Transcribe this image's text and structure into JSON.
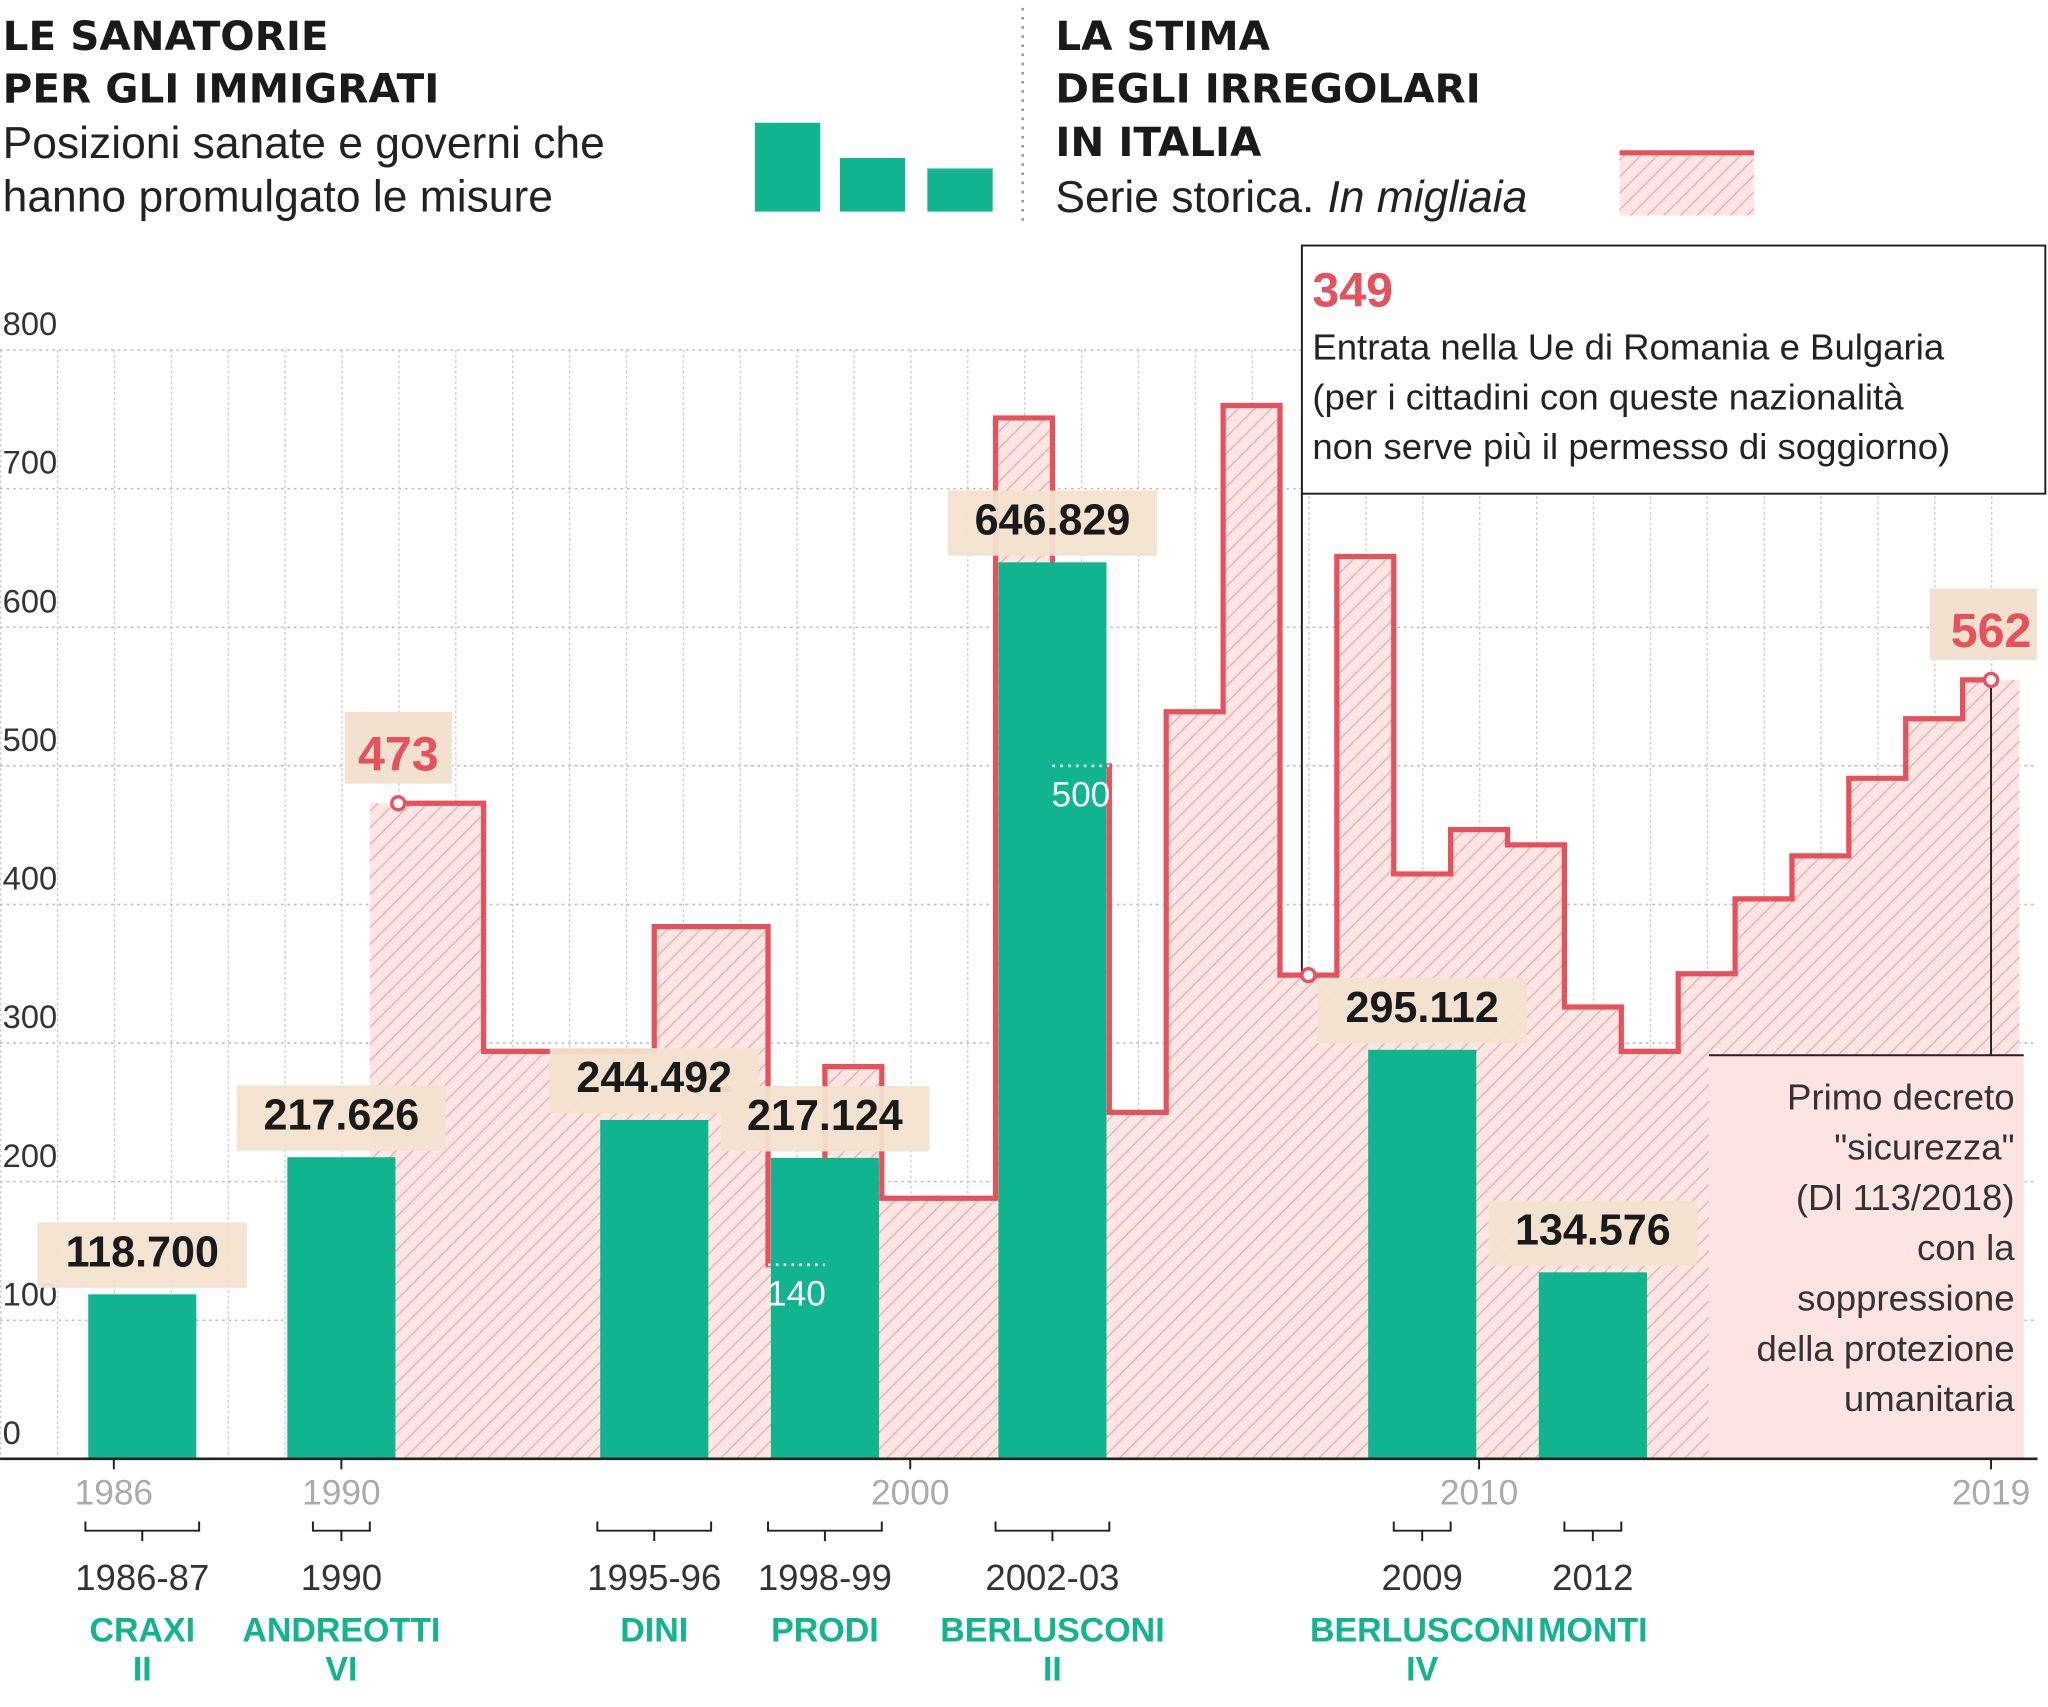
{
  "chart_data": {
    "type": "bar",
    "bars": {
      "title_lines": [
        "LE SANATORIE",
        "PER GLI IMMIGRATI"
      ],
      "subtitle_lines": [
        "Posizioni sanate e governi che",
        "hanno promulgato le misure"
      ],
      "color": "#10b48f",
      "categories": [
        "1986-87",
        "1990",
        "1995-96",
        "1998-99",
        "2002-03",
        "2009",
        "2012"
      ],
      "governments": [
        [
          "CRAXI",
          "II"
        ],
        [
          "ANDREOTTI",
          "VI"
        ],
        [
          "DINI"
        ],
        [
          "PRODI"
        ],
        [
          "BERLUSCONI",
          "II"
        ],
        [
          "BERLUSCONI",
          "IV"
        ],
        [
          "MONTI"
        ]
      ],
      "values": [
        118.7,
        217.626,
        244.492,
        217.124,
        646.829,
        295.112,
        134.576
      ],
      "value_labels": [
        "118.700",
        "217.626",
        "244.492",
        "217.124",
        "646.829",
        "295.112",
        "134.576"
      ]
    },
    "line": {
      "type": "step",
      "title_lines": [
        "LA STIMA",
        "DEGLI IRREGOLARI",
        "IN ITALIA"
      ],
      "subtitle": "Serie storica.",
      "subtitle_italic": "In migliaia",
      "color": "#e8505b",
      "x": [
        1991,
        1992,
        1993,
        1994,
        1995,
        1996,
        1997,
        1998,
        1999,
        2000,
        2001,
        2002,
        2003,
        2004,
        2005,
        2006,
        2007,
        2008,
        2009,
        2010,
        2011,
        2012,
        2013,
        2014,
        2015,
        2016,
        2017,
        2018,
        2019
      ],
      "values": [
        473,
        473,
        294,
        294,
        294,
        384,
        384,
        140,
        283,
        188,
        188,
        751,
        500,
        250,
        539,
        760,
        349,
        651,
        422,
        454,
        443,
        326,
        294,
        350,
        404,
        435,
        491,
        534,
        562
      ],
      "value_labels": [
        "473",
        null,
        null,
        null,
        null,
        null,
        null,
        "140",
        null,
        null,
        null,
        null,
        "500",
        null,
        null,
        null,
        "349",
        null,
        null,
        null,
        null,
        null,
        null,
        null,
        null,
        null,
        null,
        null,
        "562"
      ],
      "notes": [
        null,
        null,
        null,
        null,
        null,
        null,
        null,
        null,
        null,
        null,
        null,
        null,
        null,
        null,
        null,
        null,
        [
          "Entrata nella Ue di Romania e Bulgaria",
          "(per i cittadini con queste nazionalità",
          "non serve più il permesso di soggiorno)"
        ],
        null,
        null,
        null,
        null,
        null,
        null,
        null,
        null,
        null,
        null,
        null,
        [
          "Primo decreto",
          "\"sicurezza\"",
          "(Dl 113/2018)",
          "con la",
          "soppressione",
          "della protezione",
          "umanitaria"
        ]
      ]
    },
    "xlim": [
      1984,
      2020
    ],
    "xticks": [
      1986,
      1990,
      2000,
      2010,
      2019
    ],
    "ylim": [
      0,
      800
    ],
    "yticks": [
      0,
      100,
      200,
      300,
      400,
      500,
      600,
      700,
      800
    ],
    "grid": true
  }
}
